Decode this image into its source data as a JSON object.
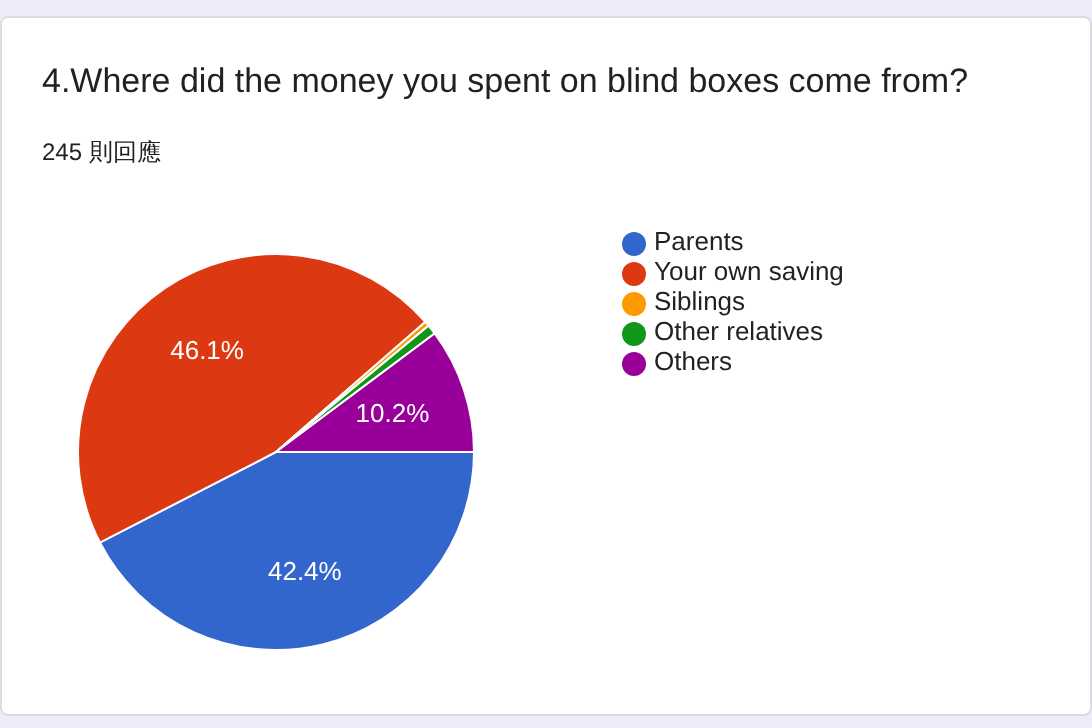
{
  "chart_data": {
    "type": "pie",
    "title": "4.Where did the money you spent on blind boxes come from?",
    "subtitle": "245 則回應",
    "categories": [
      "Parents",
      "Your own saving",
      "Siblings",
      "Other relatives",
      "Others"
    ],
    "values": [
      42.4,
      46.1,
      0.4,
      0.8,
      10.2
    ],
    "colors": [
      "#3366cc",
      "#dc3912",
      "#ff9900",
      "#109618",
      "#990099"
    ],
    "value_labels": [
      "42.4%",
      "46.1%",
      null,
      null,
      "10.2%"
    ],
    "legend": "right"
  }
}
